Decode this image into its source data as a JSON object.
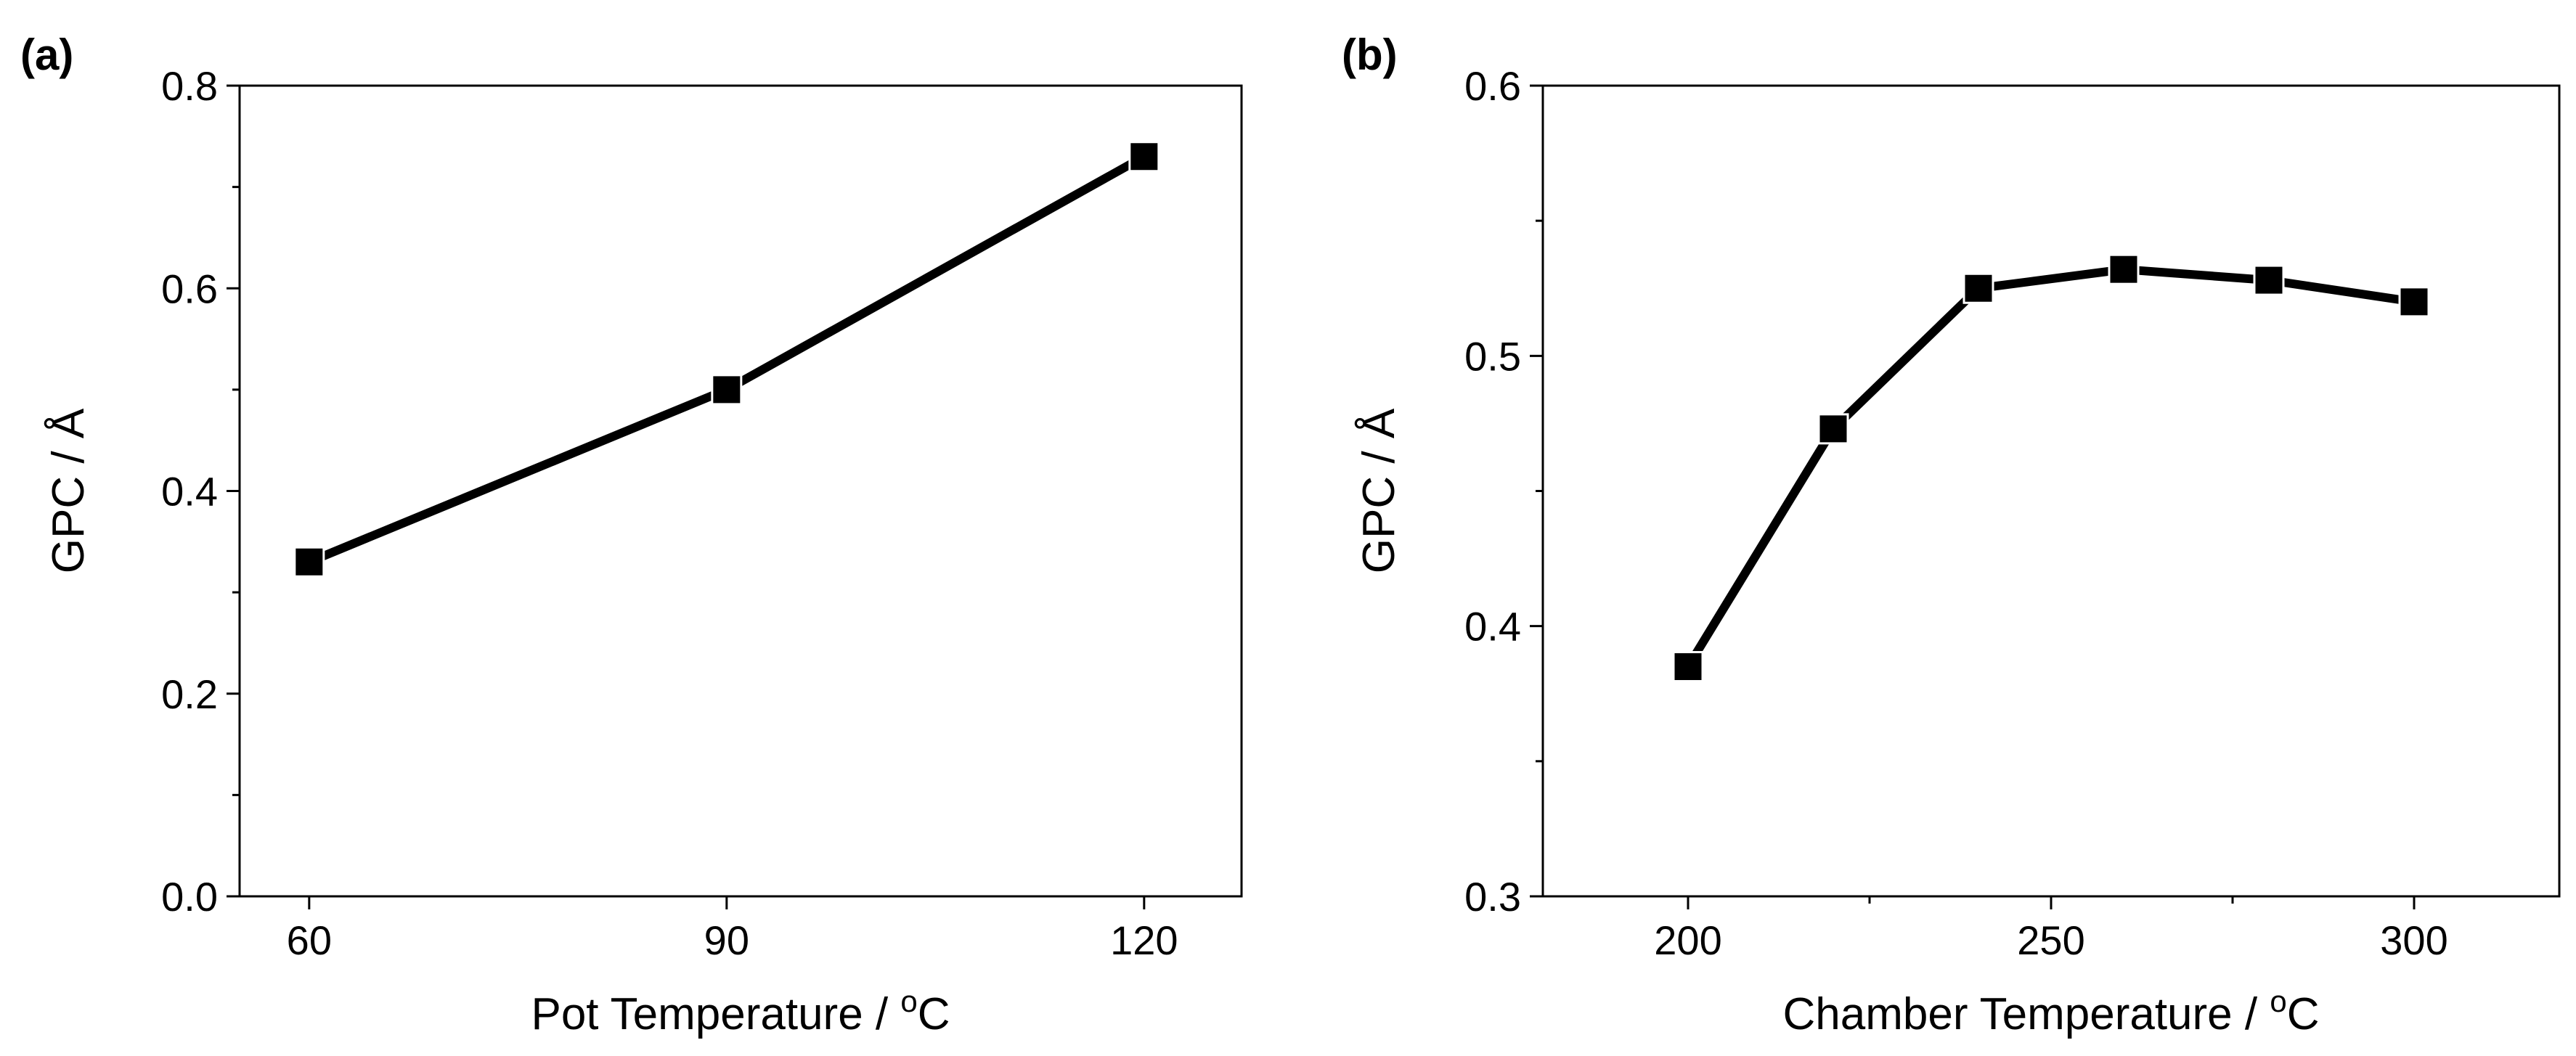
{
  "chart_data": [
    {
      "type": "line",
      "panel_label": "(a)",
      "title": "",
      "xlabel_text": "Pot Temperature / ",
      "xlabel_sup": "o",
      "xlabel_tail": "C",
      "ylabel": "GPC / Å",
      "x": [
        60,
        90,
        120
      ],
      "values": [
        0.33,
        0.5,
        0.73
      ],
      "xlim": [
        55,
        127
      ],
      "ylim": [
        0.0,
        0.8
      ],
      "xticks": [
        60,
        90,
        120
      ],
      "xtick_labels": [
        "60",
        "90",
        "120"
      ],
      "yticks": [
        0.0,
        0.2,
        0.4,
        0.6,
        0.8
      ],
      "ytick_labels": [
        "0.0",
        "0.2",
        "0.4",
        "0.6",
        "0.8"
      ],
      "yminor": [
        0.1,
        0.3,
        0.5,
        0.7
      ],
      "grid": false,
      "marker": "square"
    },
    {
      "type": "line",
      "panel_label": "(b)",
      "title": "",
      "xlabel_text": "Chamber Temperature / ",
      "xlabel_sup": "o",
      "xlabel_tail": "C",
      "ylabel": "GPC / Å",
      "x": [
        200,
        220,
        240,
        260,
        280,
        300
      ],
      "values": [
        0.385,
        0.473,
        0.525,
        0.532,
        0.528,
        0.52
      ],
      "xlim": [
        180,
        320
      ],
      "ylim": [
        0.3,
        0.6
      ],
      "xticks": [
        200,
        250,
        300
      ],
      "xtick_labels": [
        "200",
        "250",
        "300"
      ],
      "xminor": [
        225,
        275
      ],
      "yticks": [
        0.3,
        0.4,
        0.5,
        0.6
      ],
      "ytick_labels": [
        "0.3",
        "0.4",
        "0.5",
        "0.6"
      ],
      "yminor": [
        0.35,
        0.45,
        0.55
      ],
      "grid": false,
      "marker": "square"
    }
  ]
}
